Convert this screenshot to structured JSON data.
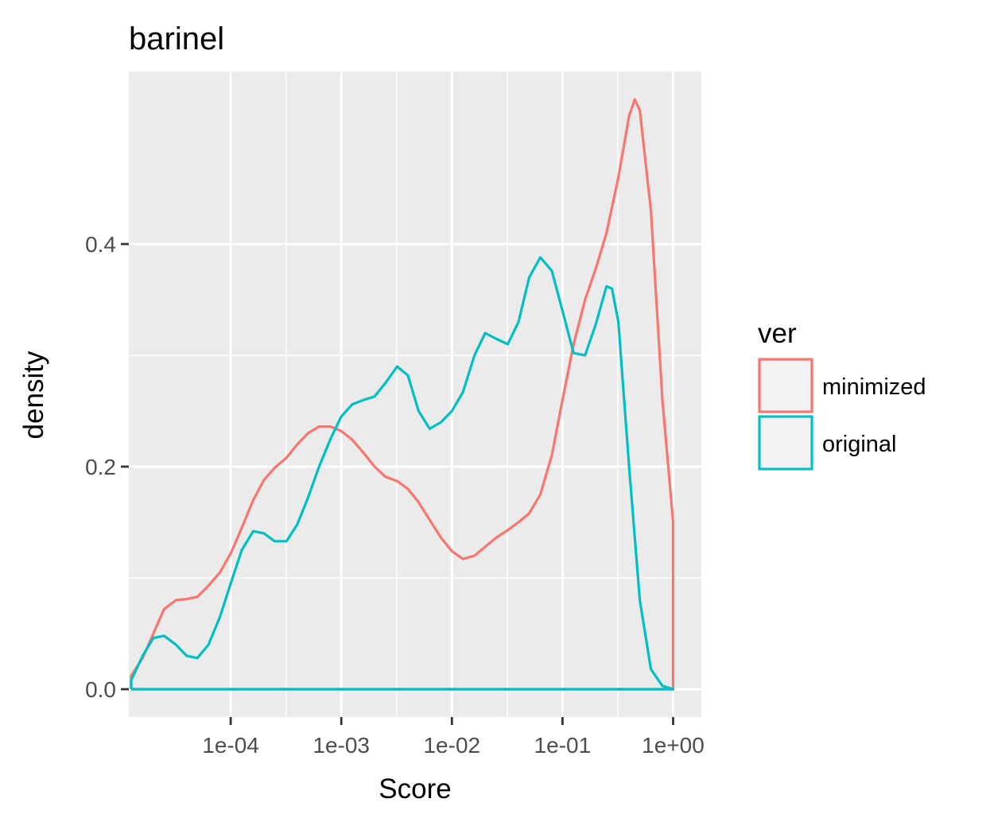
{
  "chart_data": {
    "type": "line",
    "title": "barinel",
    "xlabel": "Score",
    "ylabel": "density",
    "x_scale": "log10",
    "xlim": [
      1.2e-05,
      1.8
    ],
    "ylim": [
      -0.025,
      0.555
    ],
    "x_ticks": [
      0.0001,
      0.001,
      0.01,
      0.1,
      1
    ],
    "x_tick_labels": [
      "1e-04",
      "1e-03",
      "1e-02",
      "1e-01",
      "1e+00"
    ],
    "y_ticks": [
      0.0,
      0.2,
      0.4
    ],
    "y_tick_labels": [
      "0.0",
      "0.2",
      "0.4"
    ],
    "grid": true,
    "legend": {
      "title": "ver",
      "placement": "right"
    },
    "series": [
      {
        "name": "minimized",
        "color": "#f8766d",
        "points": [
          [
            1.26e-05,
            0.0
          ],
          [
            1.26e-05,
            0.012
          ],
          [
            1.6e-05,
            0.028
          ],
          [
            2e-05,
            0.05
          ],
          [
            2.5e-05,
            0.072
          ],
          [
            3.2e-05,
            0.08
          ],
          [
            4e-05,
            0.081
          ],
          [
            5e-05,
            0.083
          ],
          [
            6.3e-05,
            0.093
          ],
          [
            8e-05,
            0.105
          ],
          [
            0.0001,
            0.122
          ],
          [
            0.000126,
            0.145
          ],
          [
            0.00016,
            0.17
          ],
          [
            0.0002,
            0.188
          ],
          [
            0.00025,
            0.199
          ],
          [
            0.00032,
            0.208
          ],
          [
            0.0004,
            0.22
          ],
          [
            0.0005,
            0.23
          ],
          [
            0.00063,
            0.236
          ],
          [
            0.0008,
            0.236
          ],
          [
            0.001,
            0.232
          ],
          [
            0.00126,
            0.224
          ],
          [
            0.0016,
            0.212
          ],
          [
            0.002,
            0.2
          ],
          [
            0.0025,
            0.191
          ],
          [
            0.0032,
            0.187
          ],
          [
            0.004,
            0.18
          ],
          [
            0.005,
            0.168
          ],
          [
            0.0063,
            0.152
          ],
          [
            0.008,
            0.136
          ],
          [
            0.01,
            0.124
          ],
          [
            0.0126,
            0.117
          ],
          [
            0.016,
            0.12
          ],
          [
            0.02,
            0.128
          ],
          [
            0.025,
            0.136
          ],
          [
            0.032,
            0.143
          ],
          [
            0.04,
            0.15
          ],
          [
            0.05,
            0.158
          ],
          [
            0.063,
            0.175
          ],
          [
            0.08,
            0.21
          ],
          [
            0.1,
            0.26
          ],
          [
            0.126,
            0.31
          ],
          [
            0.16,
            0.35
          ],
          [
            0.2,
            0.378
          ],
          [
            0.25,
            0.41
          ],
          [
            0.32,
            0.46
          ],
          [
            0.4,
            0.515
          ],
          [
            0.45,
            0.53
          ],
          [
            0.5,
            0.52
          ],
          [
            0.63,
            0.43
          ],
          [
            0.8,
            0.26
          ],
          [
            1.0,
            0.15
          ],
          [
            1.0,
            0.0
          ],
          [
            1.26e-05,
            0.0
          ]
        ]
      },
      {
        "name": "original",
        "color": "#00bfc4",
        "points": [
          [
            1.26e-05,
            0.0
          ],
          [
            1.26e-05,
            0.008
          ],
          [
            1.6e-05,
            0.03
          ],
          [
            2e-05,
            0.046
          ],
          [
            2.5e-05,
            0.048
          ],
          [
            3.2e-05,
            0.04
          ],
          [
            4e-05,
            0.03
          ],
          [
            5e-05,
            0.028
          ],
          [
            6.3e-05,
            0.04
          ],
          [
            8e-05,
            0.065
          ],
          [
            0.0001,
            0.095
          ],
          [
            0.000126,
            0.125
          ],
          [
            0.00016,
            0.142
          ],
          [
            0.0002,
            0.14
          ],
          [
            0.00025,
            0.133
          ],
          [
            0.00032,
            0.133
          ],
          [
            0.0004,
            0.148
          ],
          [
            0.0005,
            0.172
          ],
          [
            0.00063,
            0.2
          ],
          [
            0.0008,
            0.225
          ],
          [
            0.001,
            0.245
          ],
          [
            0.00126,
            0.256
          ],
          [
            0.0016,
            0.26
          ],
          [
            0.002,
            0.263
          ],
          [
            0.0025,
            0.275
          ],
          [
            0.0032,
            0.29
          ],
          [
            0.004,
            0.282
          ],
          [
            0.005,
            0.25
          ],
          [
            0.0063,
            0.234
          ],
          [
            0.008,
            0.24
          ],
          [
            0.01,
            0.25
          ],
          [
            0.0126,
            0.267
          ],
          [
            0.016,
            0.3
          ],
          [
            0.02,
            0.32
          ],
          [
            0.025,
            0.315
          ],
          [
            0.032,
            0.31
          ],
          [
            0.04,
            0.33
          ],
          [
            0.05,
            0.37
          ],
          [
            0.063,
            0.388
          ],
          [
            0.08,
            0.376
          ],
          [
            0.1,
            0.34
          ],
          [
            0.126,
            0.302
          ],
          [
            0.16,
            0.3
          ],
          [
            0.2,
            0.328
          ],
          [
            0.25,
            0.362
          ],
          [
            0.28,
            0.36
          ],
          [
            0.32,
            0.33
          ],
          [
            0.4,
            0.2
          ],
          [
            0.5,
            0.08
          ],
          [
            0.63,
            0.018
          ],
          [
            0.8,
            0.003
          ],
          [
            1.0,
            0.0
          ],
          [
            1.26e-05,
            0.0
          ]
        ]
      }
    ]
  }
}
